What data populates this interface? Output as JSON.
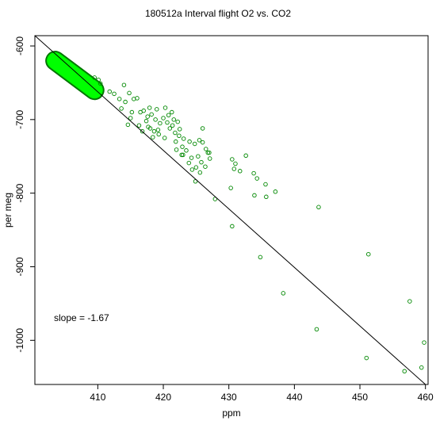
{
  "chart_data": {
    "type": "scatter",
    "title": "180512a   Interval flight O2 vs. CO2",
    "xlabel": "ppm",
    "ylabel": "per meg",
    "xlim": [
      400.4,
      460.4
    ],
    "ylim": [
      -1060,
      -586
    ],
    "x_ticks": [
      410,
      420,
      430,
      440,
      450,
      460
    ],
    "y_ticks": [
      -600,
      -700,
      -800,
      -900,
      -1000
    ],
    "grid": false,
    "annotation": "slope =  -1.67",
    "fit_line": {
      "slope": -1.67,
      "from": [
        400.4,
        -586
      ],
      "to": [
        460,
        -1060
      ]
    },
    "colors": {
      "cluster": "#00ff00",
      "outline": "#007700",
      "outlier": "#008800",
      "line": "#000000"
    },
    "series": [
      {
        "cluster_band": {
          "from": [
            403.5,
            -620
          ],
          "to": [
            409.5,
            -660
          ]
        },
        "points": [
          [
            409.5,
            -643
          ],
          [
            410.1,
            -646
          ],
          [
            410.4,
            -651
          ],
          [
            411.8,
            -662
          ],
          [
            412.5,
            -665
          ],
          [
            413.3,
            -672
          ],
          [
            414.2,
            -676
          ],
          [
            414.0,
            -653
          ],
          [
            414.8,
            -664
          ],
          [
            415.5,
            -672
          ],
          [
            413.6,
            -685
          ],
          [
            415.2,
            -690
          ],
          [
            416.5,
            -690
          ],
          [
            417.0,
            -688
          ],
          [
            417.6,
            -696
          ],
          [
            418.2,
            -693
          ],
          [
            418.8,
            -700
          ],
          [
            419.5,
            -705
          ],
          [
            420.0,
            -698
          ],
          [
            420.6,
            -704
          ],
          [
            421.0,
            -712
          ],
          [
            421.8,
            -718
          ],
          [
            422.4,
            -722
          ],
          [
            422.2,
            -703
          ],
          [
            417.4,
            -702
          ],
          [
            418.0,
            -712
          ],
          [
            419.2,
            -714
          ],
          [
            416.3,
            -708
          ],
          [
            415.0,
            -698
          ],
          [
            414.6,
            -707
          ],
          [
            416.0,
            -671
          ],
          [
            417.9,
            -684
          ],
          [
            419.0,
            -686
          ],
          [
            420.8,
            -694
          ],
          [
            421.6,
            -700
          ],
          [
            422.5,
            -713
          ],
          [
            423.1,
            -726
          ],
          [
            424.0,
            -730
          ],
          [
            424.8,
            -733
          ],
          [
            425.5,
            -728
          ],
          [
            426.0,
            -731
          ],
          [
            426.5,
            -740
          ],
          [
            427.0,
            -745
          ],
          [
            423.5,
            -742
          ],
          [
            424.3,
            -752
          ],
          [
            425.3,
            -750
          ],
          [
            425.8,
            -758
          ],
          [
            426.8,
            -745
          ],
          [
            426.0,
            -712
          ],
          [
            425.0,
            -765
          ],
          [
            424.4,
            -768
          ],
          [
            423.9,
            -759
          ],
          [
            422.9,
            -737
          ],
          [
            421.9,
            -730
          ],
          [
            420.2,
            -725
          ],
          [
            419.3,
            -720
          ],
          [
            418.4,
            -724
          ],
          [
            418.6,
            -716
          ],
          [
            417.7,
            -710
          ],
          [
            420.3,
            -684
          ],
          [
            421.3,
            -690
          ],
          [
            416.8,
            -716
          ],
          [
            421.4,
            -708
          ],
          [
            422.0,
            -741
          ],
          [
            423.0,
            -748
          ],
          [
            427.1,
            -753
          ],
          [
            426.4,
            -764
          ],
          [
            425.6,
            -772
          ],
          [
            422.8,
            -748
          ],
          [
            424.9,
            -784
          ],
          [
            427.9,
            -808
          ],
          [
            430.5,
            -754
          ],
          [
            431.0,
            -760
          ],
          [
            431.7,
            -770
          ],
          [
            432.6,
            -749
          ],
          [
            430.8,
            -767
          ],
          [
            433.8,
            -773
          ],
          [
            434.3,
            -780
          ],
          [
            435.6,
            -788
          ],
          [
            433.9,
            -803
          ],
          [
            435.7,
            -805
          ],
          [
            437.1,
            -798
          ],
          [
            430.3,
            -793
          ],
          [
            430.5,
            -845
          ],
          [
            434.8,
            -887
          ],
          [
            438.3,
            -936
          ],
          [
            443.4,
            -985
          ],
          [
            443.7,
            -819
          ],
          [
            451.3,
            -883
          ],
          [
            451.0,
            -1024
          ],
          [
            456.8,
            -1042
          ],
          [
            457.6,
            -947
          ],
          [
            459.4,
            -1037
          ],
          [
            459.8,
            -1003
          ]
        ]
      }
    ]
  }
}
